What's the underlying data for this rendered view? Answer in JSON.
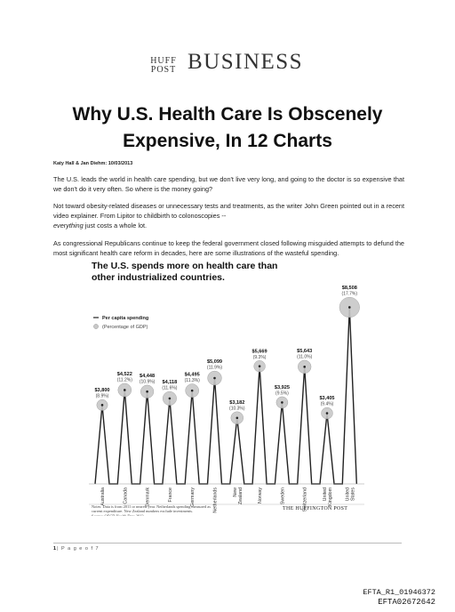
{
  "masthead": {
    "huff": "HUFF",
    "post": "POST",
    "section": "BUSINESS"
  },
  "article": {
    "title_line1": "Why U.S. Health Care Is Obscenely",
    "title_line2": "Expensive, In 12 Charts",
    "byline": "Katy Hall & Jan Diehm: 10/03/2013",
    "p1": "The U.S. leads the world in health care spending, but we don't live very long, and going to the doctor is so expensive that we don't do it very often. So where is the money going?",
    "p2_a": "Not toward obesity-related diseases or unnecessary tests and treatments, as the writer John Green pointed out in a recent video explainer. From Lipitor to childbirth to colonoscopies --",
    "p2_em": "everything",
    "p2_b": " just costs a whole lot.",
    "p3": "As congressional Republicans continue to keep the federal government closed following misguided attempts to defund the most significant health care reform in decades, here are some illustrations of the wasteful spending."
  },
  "chart_data": {
    "type": "line",
    "title": "The U.S. spends more on health care than other industrialized countries.",
    "legend": [
      "Per capita spending",
      "(Percentage of GDP)"
    ],
    "categories": [
      "Australia",
      "Canada",
      "Denmark",
      "France",
      "Germany",
      "Netherlands",
      "New Zealand",
      "Norway",
      "Sweden",
      "Switzerland",
      "United Kingdom",
      "United States"
    ],
    "value_labels": [
      "$3,800",
      "$4,522",
      "$4,448",
      "$4,118",
      "$4,495",
      "$5,099",
      "$3,182",
      "$5,669",
      "$3,925",
      "$5,643",
      "$3,405",
      "$8,508"
    ],
    "pct_labels": [
      "(8.9%)",
      "(11.2%)",
      "(10.9%)",
      "(11.6%)",
      "(11.3%)",
      "(11.9%)",
      "(10.3%)",
      "(9.3%)",
      "(9.5%)",
      "(11.0%)",
      "(9.4%)",
      "(17.7%)"
    ],
    "values": [
      3800,
      4522,
      4448,
      4118,
      4495,
      5099,
      3182,
      5669,
      3925,
      5643,
      3405,
      8508
    ],
    "gdp_pct": [
      8.9,
      11.2,
      10.9,
      11.6,
      11.3,
      11.9,
      10.3,
      9.3,
      9.5,
      11.0,
      9.4,
      17.7
    ],
    "ylim": [
      0,
      9000
    ],
    "note_lines": [
      "Notes: Data is from 2011 or nearest year. Netherlands spending measured as",
      "current expenditure. New Zealand numbers exclude investments.",
      "Source: OECD Health Data 2013"
    ],
    "credit": "THE HUFFINGTON POST",
    "colors": {
      "line": "#222222",
      "bubble": "#c8c8c8",
      "bubble_stroke": "#9a9a9a"
    }
  },
  "footer": {
    "page_num": "1",
    "page_text": "| P a g e   o f   7"
  },
  "stamps": {
    "line1": "EFTA_R1_01946372",
    "line2": "EFTA02672642"
  }
}
